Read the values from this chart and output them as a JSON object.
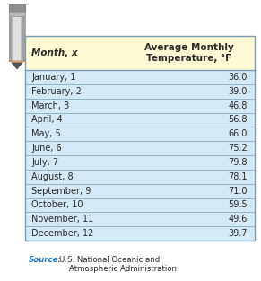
{
  "header_col1": "Month, x",
  "header_col2": "Average Monthly\nTemperature, °F",
  "rows": [
    [
      "January, 1",
      "36.0"
    ],
    [
      "February, 2",
      "39.0"
    ],
    [
      "March, 3",
      "46.8"
    ],
    [
      "April, 4",
      "56.8"
    ],
    [
      "May, 5",
      "66.0"
    ],
    [
      "June, 6",
      "75.2"
    ],
    [
      "July, 7",
      "79.8"
    ],
    [
      "August, 8",
      "78.1"
    ],
    [
      "September, 9",
      "71.0"
    ],
    [
      "October, 10",
      "59.5"
    ],
    [
      "November, 11",
      "49.6"
    ],
    [
      "December, 12",
      "39.7"
    ]
  ],
  "source_label": "Source:",
  "header_bg": "#FEFAD5",
  "row_bg": "#D5E8F5",
  "border_color": "#7A9EB5",
  "header_text_color": "#2B2B2B",
  "row_text_color": "#2B2B2B",
  "source_label_color": "#1A7ACC",
  "source_text_color": "#2B2B2B",
  "fig_width": 2.91,
  "fig_height": 3.13
}
